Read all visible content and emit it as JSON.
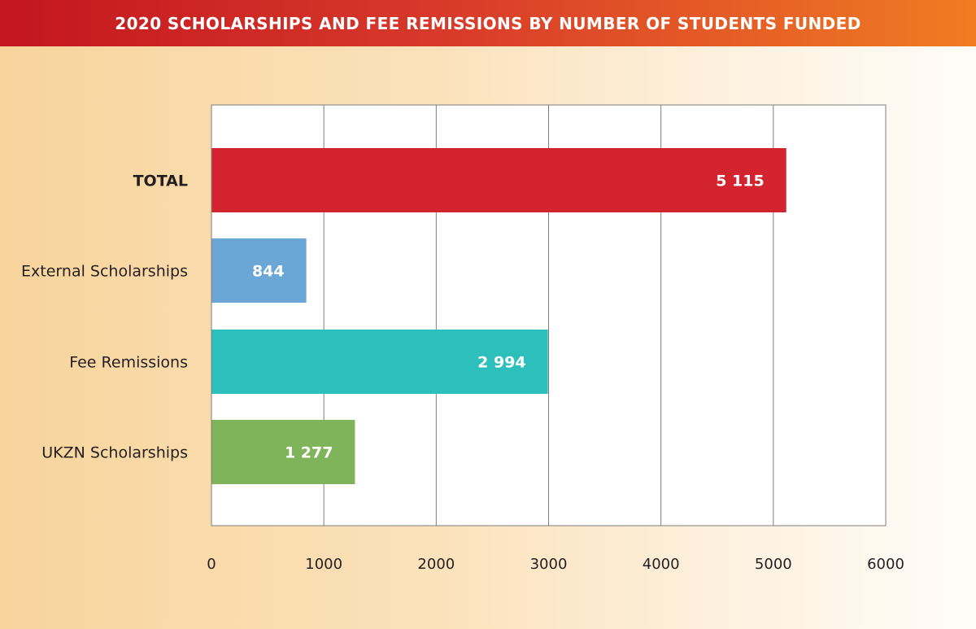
{
  "title": "2020 SCHOLARSHIPS AND FEE REMISSIONS BY NUMBER OF STUDENTS FUNDED",
  "chart_data": {
    "type": "bar",
    "orientation": "horizontal",
    "title": "2020 SCHOLARSHIPS AND FEE REMISSIONS BY NUMBER OF STUDENTS FUNDED",
    "xlabel": "",
    "ylabel": "",
    "xlim": [
      0,
      6000
    ],
    "x_ticks": [
      0,
      1000,
      2000,
      3000,
      4000,
      5000,
      6000
    ],
    "grid": true,
    "categories": [
      "TOTAL",
      "External Scholarships",
      "Fee Remissions",
      "UKZN Scholarships"
    ],
    "values": [
      5115,
      844,
      2994,
      1277
    ],
    "value_labels": [
      "5 115",
      "844",
      "2 994",
      "1 277"
    ],
    "colors": [
      "#d2232e",
      "#6aa7d6",
      "#2dbfbb",
      "#80b45a"
    ],
    "bold_categories": [
      "TOTAL"
    ]
  }
}
